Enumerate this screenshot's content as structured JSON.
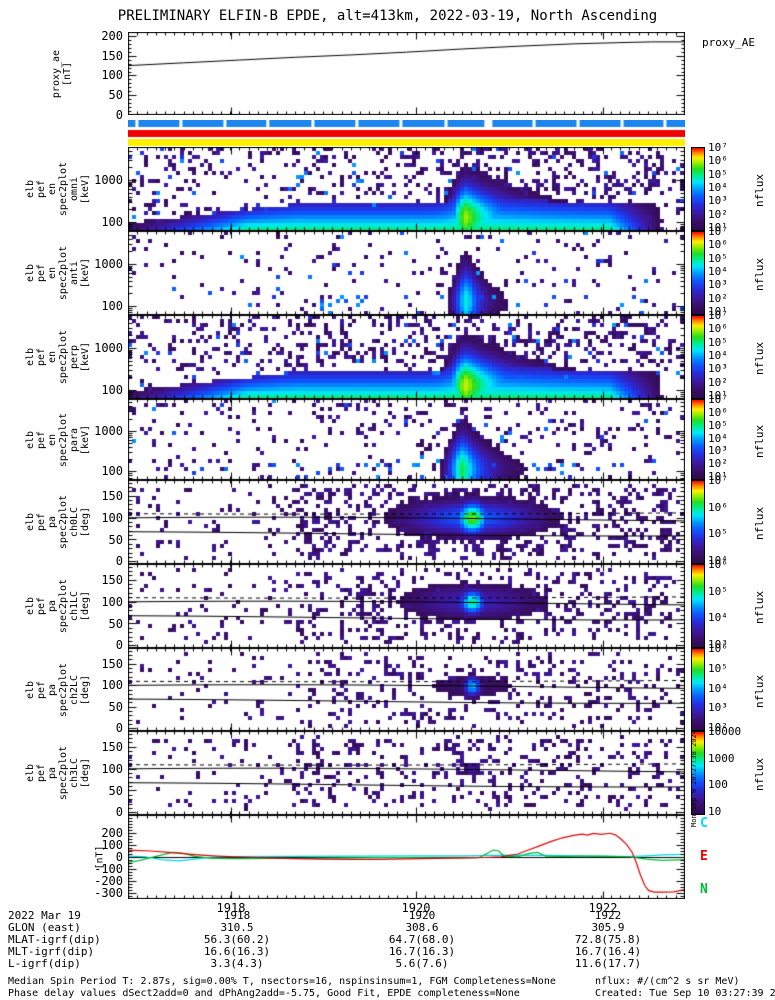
{
  "created_vertical": "Mon Sep 9 20:27:38 2024",
  "meta": {
    "rows": [
      {
        "label": "2022 Mar 19",
        "values": [
          "1918",
          "1920",
          "1922"
        ]
      },
      {
        "label": "GLON (east)",
        "values": [
          "310.5",
          "308.6",
          "305.9"
        ]
      },
      {
        "label": "MLAT-igrf(dip)",
        "values": [
          "56.3(60.2)",
          "64.7(68.0)",
          "72.8(75.8)"
        ]
      },
      {
        "label": "MLT-igrf(dip)",
        "values": [
          "16.6(16.3)",
          "16.7(16.3)",
          "16.7(16.4)"
        ]
      },
      {
        "label": "L-igrf(dip)",
        "values": [
          "3.3(4.3)",
          "5.6(7.6)",
          "11.6(17.7)"
        ]
      }
    ]
  },
  "footer": {
    "line1": "Median Spin Period T: 2.87s, sig=0.00% T, nsectors=16, nspinsinsum=1, FGM Completeness=None",
    "line2": "Phase delay values dSect2add=0 and dPhAng2add=-5.75, Good Fit, EPDE completeness=None",
    "nflux_units": "nflux: #/(cm^2 s sr MeV)",
    "created": "Created: Tue Sep 10 03:27:39 2024"
  },
  "chart_data": {
    "type": "heatmap",
    "title": "PRELIMINARY ELFIN-B EPDE, alt=413km, 2022-03-19, North Ascending",
    "colorbar_unit": "nflux",
    "time_axis": {
      "date": "2022 Mar 19",
      "ticks": [
        {
          "label": "1918",
          "t": 0.1849
        },
        {
          "label": "1920",
          "t": 0.5171
        },
        {
          "label": "1922",
          "t": 0.8528
        }
      ]
    },
    "proxy_panel": {
      "right_label": "proxy_AE",
      "ylabel_lines": [
        "proxy_ae",
        "[nT]"
      ],
      "ymin": 0,
      "ymax": 210,
      "yticks": [
        0,
        50,
        100,
        150,
        200
      ],
      "line_nT": [
        [
          0,
          125
        ],
        [
          0.1,
          132
        ],
        [
          0.2,
          139
        ],
        [
          0.3,
          146
        ],
        [
          0.4,
          152
        ],
        [
          0.5,
          159
        ],
        [
          0.6,
          167
        ],
        [
          0.7,
          174
        ],
        [
          0.8,
          180
        ],
        [
          0.88,
          183
        ],
        [
          0.94,
          185
        ],
        [
          1,
          185
        ]
      ]
    },
    "quality_bars": {
      "blue": "#1c86ee",
      "red": "#ee0000",
      "yellow": "#ffee00",
      "blue_gap_ts": [
        0.016,
        0.095,
        0.174,
        0.251,
        0.332,
        0.411,
        0.49,
        0.571,
        0.647,
        0.729,
        0.808,
        0.887,
        0.964
      ],
      "wide_gap_t": 0.647
    },
    "spectro_panels": [
      {
        "id": "omni",
        "label_lines": [
          "elb",
          "pef",
          "en",
          "spec2plot",
          "omni",
          "[keV]"
        ],
        "scale": "log",
        "emin": 61,
        "emax": 6100,
        "yticks": [
          {
            "label": "1000",
            "value": 1000
          },
          {
            "label": "100",
            "value": 100
          }
        ],
        "cbar_labels": [
          "10⁷",
          "10⁶",
          "10⁵",
          "10⁴",
          "10³",
          "10²",
          "10¹"
        ],
        "features": {
          "kind": "energy",
          "noise_upper": 0.2,
          "noise_lower": 0.13,
          "band": true,
          "bottom_blue": 0,
          "tc": 0.605,
          "sl": 0.022,
          "tail": 0.105,
          "amp": 0.82,
          "seed": 11
        }
      },
      {
        "id": "anti",
        "label_lines": [
          "elb",
          "pef",
          "en",
          "spec2plot",
          "anti",
          "[keV]"
        ],
        "scale": "log",
        "emin": 61,
        "emax": 6100,
        "yticks": [
          {
            "label": "1000",
            "value": 1000
          },
          {
            "label": "100",
            "value": 100
          }
        ],
        "cbar_labels": [
          "10⁷",
          "10⁶",
          "10⁵",
          "10⁴",
          "10³",
          "10²",
          "10¹"
        ],
        "features": {
          "kind": "energy",
          "noise_upper": 0.055,
          "noise_lower": 0.05,
          "band": false,
          "bottom_blue": 0.06,
          "tc": 0.607,
          "sl": 0.018,
          "tail": 0.03,
          "amp": 0.62,
          "seed": 22
        }
      },
      {
        "id": "perp",
        "label_lines": [
          "elb",
          "pef",
          "en",
          "spec2plot",
          "perp",
          "[keV]"
        ],
        "scale": "log",
        "emin": 61,
        "emax": 6100,
        "yticks": [
          {
            "label": "1000",
            "value": 1000
          },
          {
            "label": "100",
            "value": 100
          }
        ],
        "cbar_labels": [
          "10⁷",
          "10⁶",
          "10⁵",
          "10⁴",
          "10³",
          "10²",
          "10¹"
        ],
        "features": {
          "kind": "energy",
          "noise_upper": 0.21,
          "noise_lower": 0.14,
          "band": true,
          "bottom_blue": 0,
          "tc": 0.605,
          "sl": 0.024,
          "tail": 0.11,
          "amp": 0.85,
          "seed": 33
        }
      },
      {
        "id": "para",
        "label_lines": [
          "elb",
          "pef",
          "en",
          "spec2plot",
          "para",
          "[keV]"
        ],
        "scale": "log",
        "emin": 61,
        "emax": 6100,
        "yticks": [
          {
            "label": "1000",
            "value": 1000
          },
          {
            "label": "100",
            "value": 100
          }
        ],
        "cbar_labels": [
          "10⁷",
          "10⁶",
          "10⁵",
          "10⁴",
          "10³",
          "10²",
          "10¹"
        ],
        "features": {
          "kind": "energy",
          "noise_upper": 0.1,
          "noise_lower": 0.08,
          "band": false,
          "bottom_blue": 0.08,
          "tc": 0.6,
          "sl": 0.02,
          "tail": 0.045,
          "amp": 0.72,
          "seed": 44
        }
      },
      {
        "id": "ch0LC",
        "label_lines": [
          "elb",
          "pef",
          "pa",
          "spec2plot",
          "ch0LC",
          "[deg]"
        ],
        "scale": "linear",
        "dmin": -6,
        "dmax": 186,
        "yticks": [
          {
            "label": "150",
            "value": 150
          },
          {
            "label": "100",
            "value": 100
          },
          {
            "label": "50",
            "value": 50
          },
          {
            "label": "0",
            "value": 0
          }
        ],
        "cbar_labels": [
          "10⁷",
          "10⁶",
          "10⁵",
          "10⁴"
        ],
        "lc_lines": {
          "solid": [
            96,
            63
          ],
          "dashed": 112
        },
        "features": {
          "kind": "pitch",
          "base": 0.1,
          "mid": 0.22,
          "tc": 0.615,
          "st": 0.02,
          "sv": 0.13,
          "amp": 0.8,
          "wamp": 0.42,
          "seed": 55
        }
      },
      {
        "id": "ch1LC",
        "label_lines": [
          "elb",
          "pef",
          "pa",
          "spec2plot",
          "ch1LC",
          "[deg]"
        ],
        "scale": "linear",
        "dmin": -6,
        "dmax": 186,
        "yticks": [
          {
            "label": "150",
            "value": 150
          },
          {
            "label": "100",
            "value": 100
          },
          {
            "label": "50",
            "value": 50
          },
          {
            "label": "0",
            "value": 0
          }
        ],
        "cbar_labels": [
          "10⁶",
          "10⁵",
          "10⁴",
          "10³"
        ],
        "lc_lines": {
          "solid": [
            96,
            63
          ],
          "dashed": 112
        },
        "features": {
          "kind": "pitch",
          "base": 0.08,
          "mid": 0.16,
          "tc": 0.615,
          "st": 0.016,
          "sv": 0.1,
          "amp": 0.68,
          "wamp": 0.25,
          "seed": 66
        }
      },
      {
        "id": "ch2LC",
        "label_lines": [
          "elb",
          "pef",
          "pa",
          "spec2plot",
          "ch2LC",
          "[deg]"
        ],
        "scale": "linear",
        "dmin": -6,
        "dmax": 186,
        "yticks": [
          {
            "label": "150",
            "value": 150
          },
          {
            "label": "100",
            "value": 100
          },
          {
            "label": "50",
            "value": 50
          },
          {
            "label": "0",
            "value": 0
          }
        ],
        "cbar_labels": [
          "10⁶",
          "10⁵",
          "10⁴",
          "10³",
          "10²"
        ],
        "lc_lines": {
          "solid": [
            96,
            63
          ],
          "dashed": 112
        },
        "features": {
          "kind": "pitch",
          "base": 0.07,
          "mid": 0.12,
          "tc": 0.615,
          "st": 0.011,
          "sv": 0.08,
          "amp": 0.55,
          "wamp": 0.1,
          "seed": 77
        }
      },
      {
        "id": "ch3LC",
        "label_lines": [
          "elb",
          "pef",
          "pa",
          "spec2plot",
          "ch3LC",
          "[deg]"
        ],
        "scale": "linear",
        "dmin": -6,
        "dmax": 186,
        "yticks": [
          {
            "label": "150",
            "value": 150
          },
          {
            "label": "100",
            "value": 100
          },
          {
            "label": "50",
            "value": 50
          },
          {
            "label": "0",
            "value": 0
          }
        ],
        "cbar_labels": [
          "10000",
          "1000",
          "100",
          "10"
        ],
        "lc_lines": {
          "solid": [
            96,
            63
          ],
          "dashed": 112
        },
        "features": {
          "kind": "pitch",
          "base": 0.08,
          "mid": 0.1,
          "tc": 0.615,
          "st": 0.01,
          "sv": 0.06,
          "amp": 0.22,
          "wamp": 0.05,
          "seed": 88
        }
      }
    ],
    "bfield_panel": {
      "ylabel_lines": [
        "[nT]"
      ],
      "ymin": -350,
      "ymax": 350,
      "yticks": [
        200,
        100,
        0,
        -100,
        -200,
        -300
      ],
      "legend": [
        {
          "name": "C",
          "color": "#00dcff"
        },
        {
          "name": "E",
          "color": "#ee0000"
        },
        {
          "name": "N",
          "color": "#00bb33"
        }
      ],
      "series": [
        {
          "name": "C",
          "color": "#00d5e5",
          "points": [
            [
              0,
              8
            ],
            [
              0.03,
              2
            ],
            [
              0.06,
              -22
            ],
            [
              0.09,
              -32
            ],
            [
              0.12,
              -18
            ],
            [
              0.15,
              -2
            ],
            [
              0.2,
              4
            ],
            [
              0.3,
              6
            ],
            [
              0.4,
              7
            ],
            [
              0.5,
              9
            ],
            [
              0.6,
              10
            ],
            [
              0.65,
              13
            ],
            [
              0.7,
              16
            ],
            [
              0.75,
              13
            ],
            [
              0.8,
              10
            ],
            [
              0.85,
              7
            ],
            [
              0.9,
              4
            ],
            [
              0.93,
              10
            ],
            [
              0.96,
              18
            ],
            [
              1,
              22
            ]
          ]
        },
        {
          "name": "N",
          "color": "#00bb33",
          "points": [
            [
              0,
              -45
            ],
            [
              0.02,
              -30
            ],
            [
              0.05,
              5
            ],
            [
              0.08,
              38
            ],
            [
              0.1,
              30
            ],
            [
              0.12,
              5
            ],
            [
              0.15,
              -12
            ],
            [
              0.2,
              -14
            ],
            [
              0.25,
              -12
            ],
            [
              0.3,
              -12
            ],
            [
              0.35,
              -10
            ],
            [
              0.4,
              -8
            ],
            [
              0.45,
              -6
            ],
            [
              0.5,
              -6
            ],
            [
              0.55,
              -7
            ],
            [
              0.6,
              -8
            ],
            [
              0.63,
              -6
            ],
            [
              0.645,
              30
            ],
            [
              0.655,
              58
            ],
            [
              0.665,
              52
            ],
            [
              0.675,
              8
            ],
            [
              0.7,
              2
            ],
            [
              0.72,
              30
            ],
            [
              0.735,
              38
            ],
            [
              0.75,
              8
            ],
            [
              0.78,
              6
            ],
            [
              0.82,
              8
            ],
            [
              0.86,
              6
            ],
            [
              0.9,
              2
            ],
            [
              0.93,
              -18
            ],
            [
              0.96,
              -28
            ],
            [
              1,
              -22
            ]
          ]
        },
        {
          "name": "E",
          "color": "#dd0000",
          "points": [
            [
              0,
              58
            ],
            [
              0.04,
              50
            ],
            [
              0.08,
              36
            ],
            [
              0.12,
              20
            ],
            [
              0.16,
              8
            ],
            [
              0.2,
              0
            ],
            [
              0.25,
              -8
            ],
            [
              0.3,
              -14
            ],
            [
              0.35,
              -18
            ],
            [
              0.4,
              -20
            ],
            [
              0.45,
              -19
            ],
            [
              0.5,
              -16
            ],
            [
              0.55,
              -12
            ],
            [
              0.6,
              -8
            ],
            [
              0.64,
              -4
            ],
            [
              0.67,
              2
            ],
            [
              0.7,
              25
            ],
            [
              0.72,
              60
            ],
            [
              0.74,
              95
            ],
            [
              0.76,
              130
            ],
            [
              0.78,
              160
            ],
            [
              0.8,
              180
            ],
            [
              0.815,
              190
            ],
            [
              0.825,
              182
            ],
            [
              0.835,
              196
            ],
            [
              0.85,
              188
            ],
            [
              0.865,
              198
            ],
            [
              0.875,
              185
            ],
            [
              0.885,
              150
            ],
            [
              0.895,
              105
            ],
            [
              0.905,
              40
            ],
            [
              0.912,
              -40
            ],
            [
              0.92,
              -150
            ],
            [
              0.928,
              -240
            ],
            [
              0.935,
              -280
            ],
            [
              0.945,
              -292
            ],
            [
              0.96,
              -293
            ],
            [
              0.98,
              -290
            ],
            [
              1,
              -272
            ]
          ]
        }
      ]
    }
  }
}
